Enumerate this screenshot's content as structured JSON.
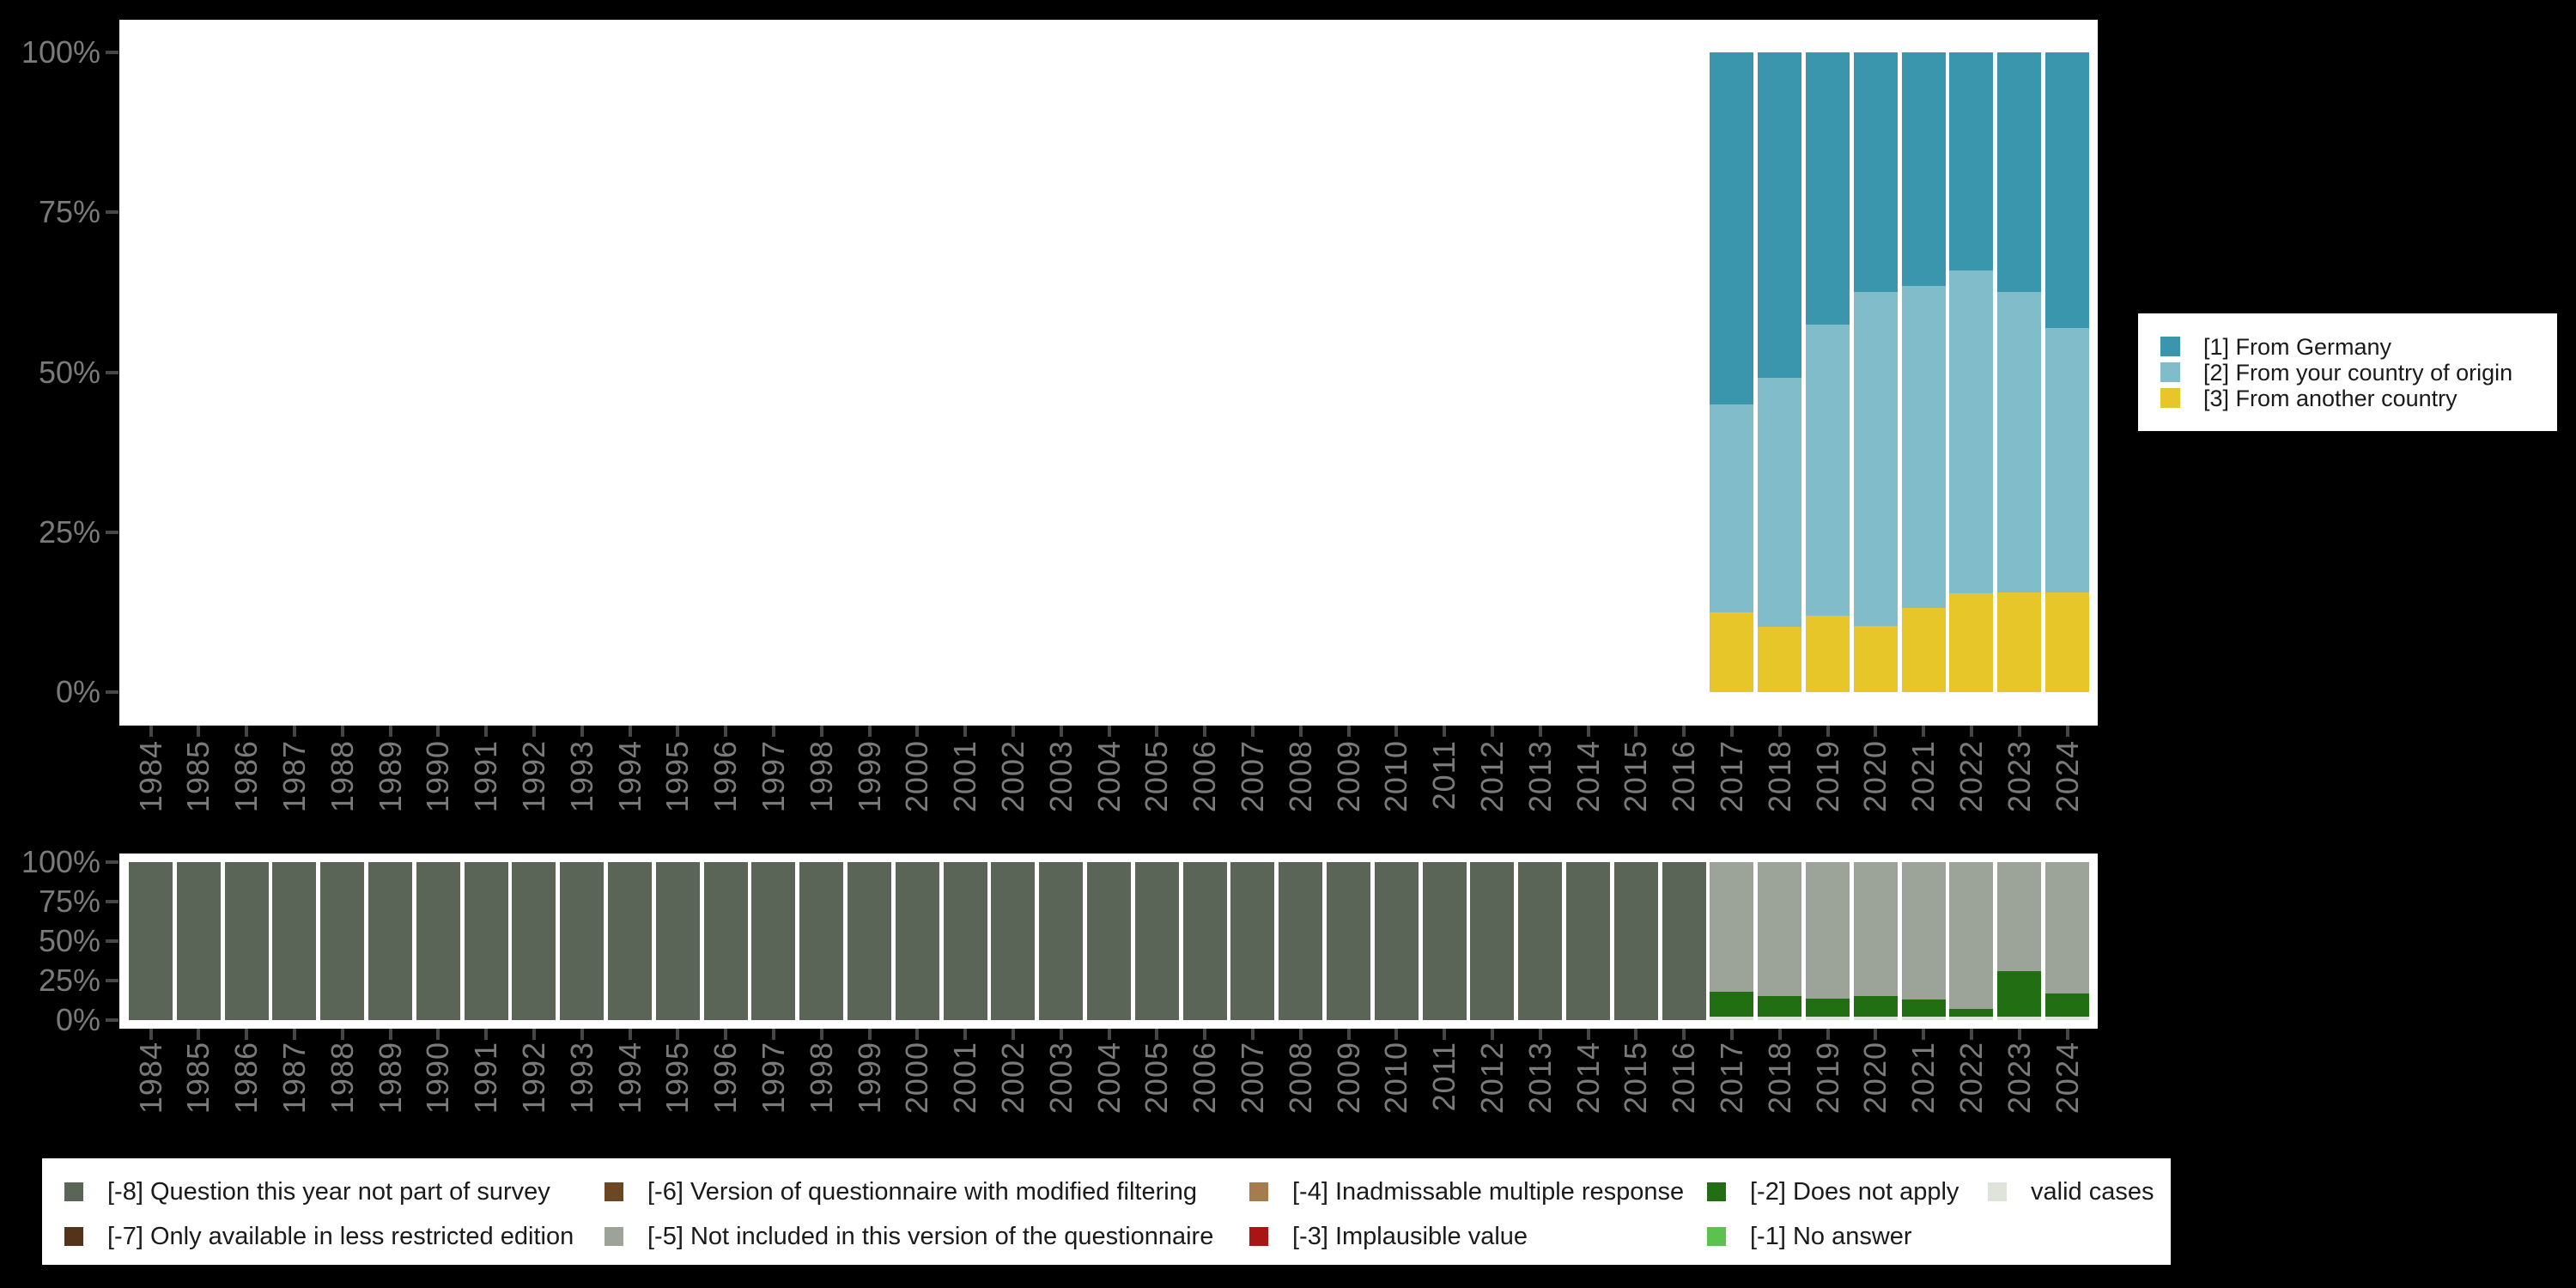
{
  "figure": {
    "background": "#000000",
    "plot_background": "#ffffff",
    "axis_label_color": "#7a7a7a",
    "tick_color": "#464646",
    "legend_text_color": "#1a1a1a"
  },
  "axes": {
    "y_tick_labels": [
      "100%",
      "75%",
      "50%",
      "25%",
      "0%"
    ],
    "x_tick_labels": [
      "1984",
      "1985",
      "1986",
      "1987",
      "1988",
      "1989",
      "1990",
      "1991",
      "1992",
      "1993",
      "1994",
      "1995",
      "1996",
      "1997",
      "1998",
      "1999",
      "2000",
      "2001",
      "2002",
      "2003",
      "2004",
      "2005",
      "2006",
      "2007",
      "2008",
      "2009",
      "2010",
      "2011",
      "2012",
      "2013",
      "2014",
      "2015",
      "2016",
      "2017",
      "2018",
      "2019",
      "2020",
      "2021",
      "2022",
      "2023",
      "2024"
    ]
  },
  "legend_top": {
    "items": [
      {
        "label": "[1] From Germany",
        "color": "#3a96ac"
      },
      {
        "label": "[2] From your country of origin",
        "color": "#80bcca"
      },
      {
        "label": "[3] From another country",
        "color": "#e7c629"
      }
    ]
  },
  "legend_bottom": {
    "columns": [
      [
        {
          "label": "[-8] Question this year not part of survey",
          "color": "#5a6457"
        },
        {
          "label": "[-7] Only available in less restricted edition",
          "color": "#53341b"
        }
      ],
      [
        {
          "label": "[-6] Version of questionnaire with modified filtering",
          "color": "#6d4724"
        },
        {
          "label": "[-5] Not included in this version of the questionnaire",
          "color": "#9ca399"
        }
      ],
      [
        {
          "label": "[-4] Inadmissable multiple response",
          "color": "#a67c4e"
        },
        {
          "label": "[-3] Implausible value",
          "color": "#a91515"
        }
      ],
      [
        {
          "label": "[-2] Does not apply",
          "color": "#226e13"
        },
        {
          "label": "[-1] No answer",
          "color": "#5cc24e"
        }
      ],
      [
        {
          "label": "valid cases",
          "color": "#dfe4db"
        }
      ]
    ]
  },
  "chart_data": [
    {
      "id": "top-distribution",
      "type": "bar",
      "stacking": "percent",
      "title": "",
      "xlabel": "",
      "ylabel": "",
      "ylim": [
        0,
        100
      ],
      "y_ticks": [
        0,
        25,
        50,
        75,
        100
      ],
      "grid": false,
      "legend_position": "right",
      "x_domain_note": "x axis spans 1984-2024; bars exist only for 2017-2024",
      "x": [
        "2017",
        "2018",
        "2019",
        "2020",
        "2021",
        "2022",
        "2023",
        "2024"
      ],
      "series": [
        {
          "name": "[1] From Germany",
          "color": "#3a96ac",
          "values": [
            55.1,
            50.9,
            42.6,
            37.4,
            36.5,
            34.1,
            37.4,
            43.1
          ]
        },
        {
          "name": "[2] From your country of origin",
          "color": "#80bcca",
          "values": [
            32.4,
            38.9,
            45.5,
            52.2,
            50.3,
            50.5,
            47.0,
            41.3
          ]
        },
        {
          "name": "[3] From another country",
          "color": "#e7c629",
          "values": [
            12.5,
            10.2,
            11.9,
            10.4,
            13.2,
            15.4,
            15.6,
            15.6
          ]
        }
      ]
    },
    {
      "id": "bottom-missings",
      "type": "bar",
      "stacking": "percent",
      "title": "",
      "xlabel": "",
      "ylabel": "",
      "ylim": [
        0,
        100
      ],
      "y_ticks": [
        0,
        25,
        50,
        75,
        100
      ],
      "grid": false,
      "legend_position": "bottom",
      "x": [
        "1984",
        "1985",
        "1986",
        "1987",
        "1988",
        "1989",
        "1990",
        "1991",
        "1992",
        "1993",
        "1994",
        "1995",
        "1996",
        "1997",
        "1998",
        "1999",
        "2000",
        "2001",
        "2002",
        "2003",
        "2004",
        "2005",
        "2006",
        "2007",
        "2008",
        "2009",
        "2010",
        "2011",
        "2012",
        "2013",
        "2014",
        "2015",
        "2016",
        "2017",
        "2018",
        "2019",
        "2020",
        "2021",
        "2022",
        "2023",
        "2024"
      ],
      "series": [
        {
          "name": "[-8] Question this year not part of survey",
          "color": "#5a6457",
          "values": [
            100,
            100,
            100,
            100,
            100,
            100,
            100,
            100,
            100,
            100,
            100,
            100,
            100,
            100,
            100,
            100,
            100,
            100,
            100,
            100,
            100,
            100,
            100,
            100,
            100,
            100,
            100,
            100,
            100,
            100,
            100,
            100,
            100,
            0,
            0,
            0,
            0,
            0,
            0,
            0,
            0
          ]
        },
        {
          "name": "[-5] Not included in this version of the questionnaire",
          "color": "#9ca399",
          "values": [
            0,
            0,
            0,
            0,
            0,
            0,
            0,
            0,
            0,
            0,
            0,
            0,
            0,
            0,
            0,
            0,
            0,
            0,
            0,
            0,
            0,
            0,
            0,
            0,
            0,
            0,
            0,
            0,
            0,
            0,
            0,
            0,
            0,
            82.1,
            84.8,
            86.4,
            84.8,
            87.1,
            92.8,
            69.2,
            83.3
          ]
        },
        {
          "name": "[-2] Does not apply",
          "color": "#226e13",
          "values": [
            0,
            0,
            0,
            0,
            0,
            0,
            0,
            0,
            0,
            0,
            0,
            0,
            0,
            0,
            0,
            0,
            0,
            0,
            0,
            0,
            0,
            0,
            0,
            0,
            0,
            0,
            0,
            0,
            0,
            0,
            0,
            0,
            0,
            15.9,
            13.2,
            11.6,
            13.2,
            10.9,
            5.2,
            28.8,
            14.7
          ]
        },
        {
          "name": "valid cases",
          "color": "#dfe4db",
          "values": [
            0,
            0,
            0,
            0,
            0,
            0,
            0,
            0,
            0,
            0,
            0,
            0,
            0,
            0,
            0,
            0,
            0,
            0,
            0,
            0,
            0,
            0,
            0,
            0,
            0,
            0,
            0,
            0,
            0,
            0,
            0,
            0,
            0,
            2.0,
            2.0,
            2.0,
            2.0,
            2.0,
            2.0,
            2.0,
            2.0
          ]
        }
      ]
    }
  ]
}
